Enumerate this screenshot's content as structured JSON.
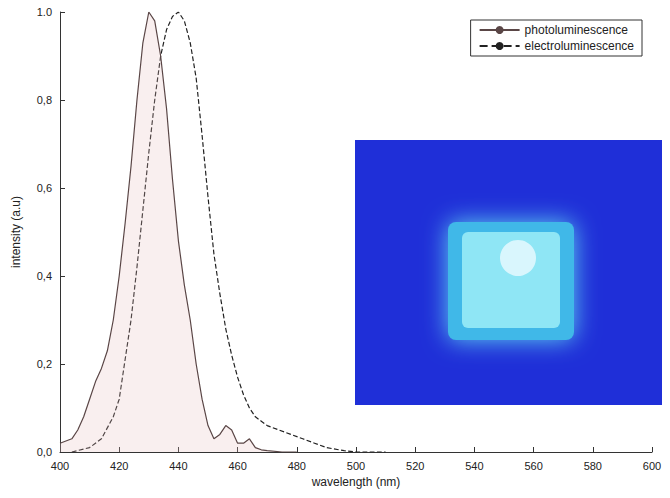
{
  "chart_data": {
    "type": "line",
    "x_label": "wavelength (nm)",
    "y_label": "intensity (a.u)",
    "xlim": [
      400,
      600
    ],
    "xticks": [
      400,
      420,
      440,
      460,
      480,
      500,
      520,
      540,
      560,
      580,
      600
    ],
    "ylim": [
      0,
      1
    ],
    "yticks": [
      {
        "value": 0,
        "label": "0,0"
      },
      {
        "value": 0.2,
        "label": "0,2"
      },
      {
        "value": 0.4,
        "label": "0,4"
      },
      {
        "value": 0.6,
        "label": "0,6"
      },
      {
        "value": 0.8,
        "label": "0,8"
      },
      {
        "value": 1,
        "label": "1.0"
      }
    ],
    "grid": false,
    "legend": "top-right",
    "series": [
      {
        "name": "photoluminescence",
        "color": "#5a4646",
        "line_style": "solid",
        "x": [
          400,
          404,
          406,
          408,
          410,
          412,
          414,
          416,
          418,
          420,
          422,
          424,
          426,
          428,
          430,
          432,
          434,
          436,
          438,
          440,
          442,
          444,
          446,
          448,
          450,
          452,
          454,
          456,
          458,
          460,
          462,
          464,
          466,
          468,
          470,
          475,
          480
        ],
        "values": [
          0.02,
          0.03,
          0.05,
          0.08,
          0.12,
          0.16,
          0.19,
          0.23,
          0.3,
          0.4,
          0.52,
          0.65,
          0.8,
          0.93,
          1.0,
          0.98,
          0.9,
          0.78,
          0.62,
          0.48,
          0.38,
          0.3,
          0.2,
          0.12,
          0.06,
          0.03,
          0.04,
          0.06,
          0.05,
          0.02,
          0.02,
          0.03,
          0.01,
          0.005,
          0.003,
          0.0,
          0.0
        ]
      },
      {
        "name": "electroluminescence",
        "color": "#222222",
        "line_style": "dashed",
        "x": [
          404,
          410,
          414,
          418,
          420,
          424,
          426,
          428,
          430,
          432,
          434,
          436,
          438,
          440,
          442,
          444,
          446,
          448,
          450,
          452,
          454,
          456,
          458,
          460,
          462,
          464,
          466,
          468,
          470,
          474,
          478,
          482,
          486,
          490,
          496,
          500,
          510
        ],
        "values": [
          0.0,
          0.01,
          0.03,
          0.08,
          0.12,
          0.3,
          0.42,
          0.55,
          0.68,
          0.8,
          0.9,
          0.96,
          0.99,
          1.0,
          0.98,
          0.93,
          0.85,
          0.72,
          0.58,
          0.45,
          0.36,
          0.28,
          0.22,
          0.17,
          0.13,
          0.1,
          0.08,
          0.07,
          0.06,
          0.05,
          0.04,
          0.03,
          0.02,
          0.01,
          0.003,
          0.0,
          0.0
        ]
      }
    ]
  }
}
